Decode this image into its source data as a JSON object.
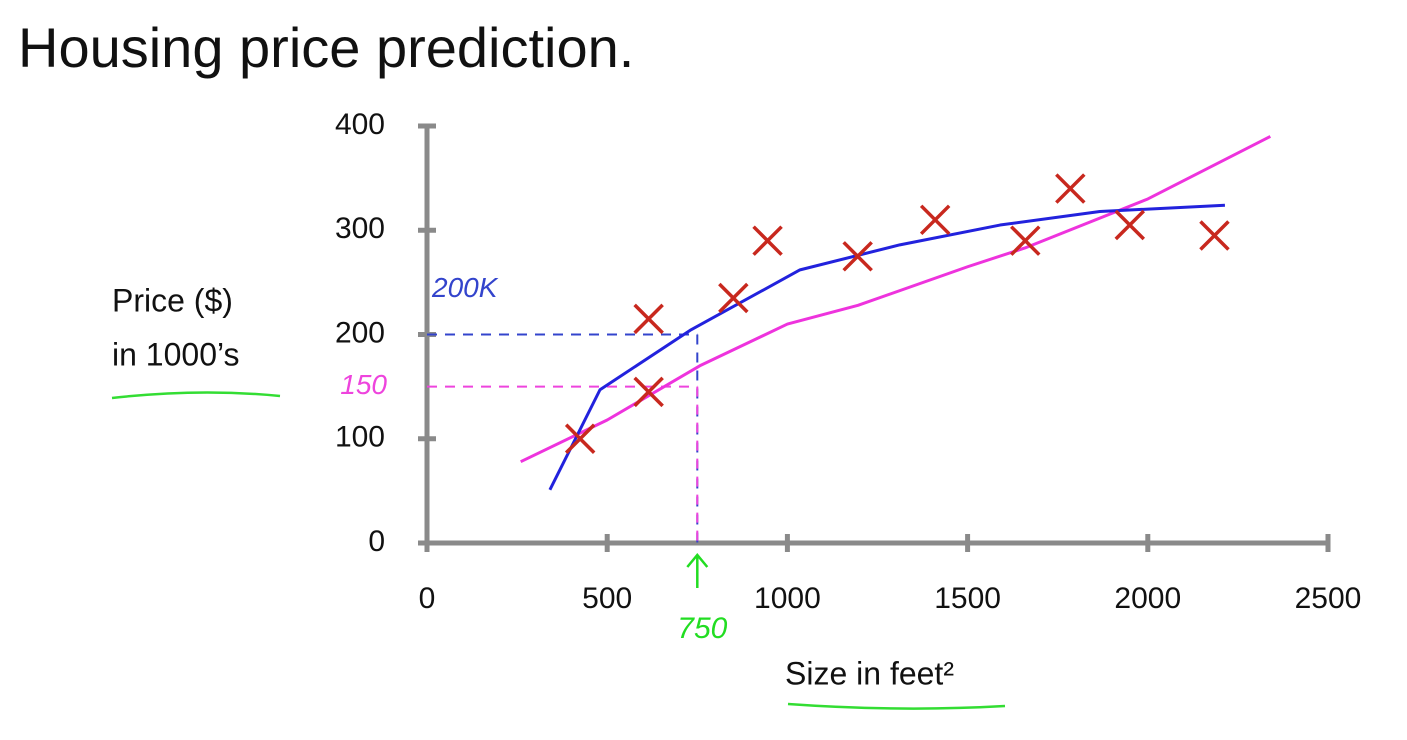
{
  "chart_data": {
    "type": "scatter",
    "title": "Housing price prediction.",
    "y_label": [
      "Price ($)",
      "in 1000’s"
    ],
    "x_label": "Size in feet²",
    "xlim": [
      0,
      2500
    ],
    "ylim": [
      0,
      400
    ],
    "xticks": [
      0,
      500,
      1000,
      1500,
      2000,
      2500
    ],
    "yticks": [
      0,
      100,
      200,
      300,
      400
    ],
    "grid": false,
    "series": [
      {
        "style": "x-marker",
        "color": "#c8281e",
        "x": [
          425,
          615,
          615,
          850,
          945,
          1195,
          1410,
          1660,
          1785,
          1950,
          2185
        ],
        "values": [
          100,
          215,
          145,
          235,
          290,
          275,
          310,
          290,
          340,
          305,
          295
        ]
      },
      {
        "style": "line",
        "color": "#ee33dd",
        "x": [
          260,
          500,
          757,
          1000,
          1196,
          1500,
          1659,
          2000,
          2340
        ],
        "values": [
          78,
          118,
          170,
          210,
          228,
          265,
          283,
          330,
          390
        ]
      },
      {
        "style": "line",
        "color": "#2222dd",
        "x": [
          341,
          480,
          730,
          1035,
          1312,
          1590,
          1867,
          2214
        ],
        "values": [
          51,
          147,
          204,
          262,
          286,
          305,
          318,
          324
        ]
      }
    ],
    "annotations": [
      {
        "text": "200K",
        "x": 750,
        "y": 200,
        "color": "#3344cc"
      },
      {
        "text": "150",
        "x": 750,
        "y": 150,
        "color": "#ee44dd"
      },
      {
        "text": "750",
        "x": 750,
        "color": "#22dd22"
      }
    ]
  }
}
